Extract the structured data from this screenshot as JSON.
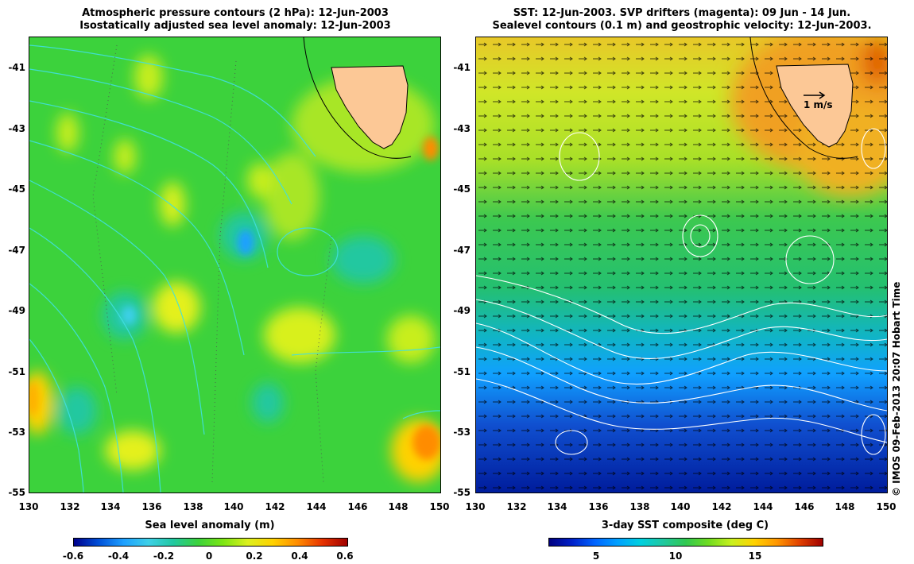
{
  "left_panel": {
    "title_line1": "Atmospheric pressure contours (2 hPa): 12-Jun-2003",
    "title_line2": "Isostatically adjusted sea level anomaly: 12-Jun-2003",
    "colorbar": {
      "label": "Sea level anomaly (m)",
      "ticks": [
        "-0.6",
        "-0.4",
        "-0.2",
        "0",
        "0.2",
        "0.4",
        "0.6"
      ],
      "colors": [
        "#00008b",
        "#0050d8",
        "#1ea0ff",
        "#3ed0e8",
        "#22c8a0",
        "#3cd23c",
        "#7ce614",
        "#dcf01e",
        "#ffd200",
        "#ff8c00",
        "#e63200",
        "#a00000"
      ]
    }
  },
  "right_panel": {
    "title_line1": "SST: 12-Jun-2003. SVP drifters (magenta): 09 Jun - 14 Jun.",
    "title_line2": "Sealevel contours (0.1 m) and geostrophic velocity: 12-Jun-2003.",
    "vector_legend": "1 m/s",
    "colorbar": {
      "label": "3-day SST composite (deg C)",
      "ticks": [
        "5",
        "10",
        "15"
      ],
      "colors": [
        "#000080",
        "#0020c8",
        "#0064ff",
        "#00a0ff",
        "#00d0e0",
        "#20c8a0",
        "#30c850",
        "#70dc20",
        "#c8f01e",
        "#ffd200",
        "#ff9600",
        "#e04000",
        "#a00000"
      ]
    }
  },
  "axes": {
    "x_ticks": [
      "130",
      "132",
      "134",
      "136",
      "138",
      "140",
      "142",
      "144",
      "146",
      "148",
      "150"
    ],
    "y_ticks": [
      "-41",
      "-43",
      "-45",
      "-47",
      "-49",
      "-51",
      "-53",
      "-55"
    ]
  },
  "credit": "© IMOS 09-Feb-2013 20:07 Hobart Time",
  "colors": {
    "land": "#fcc896",
    "pressure_contour": "#40e0e0",
    "sealevel_contour": "#ffffff"
  }
}
